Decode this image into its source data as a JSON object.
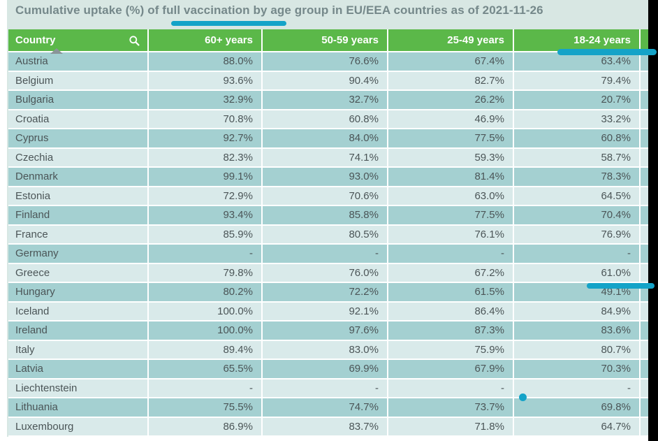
{
  "title": "Cumulative uptake (%) of full vaccination by age group in EU/EEA countries as of 2021-11-26",
  "table": {
    "columns": [
      {
        "label": "Country"
      },
      {
        "label": "60+ years"
      },
      {
        "label": "50-59 years"
      },
      {
        "label": "25-49 years"
      },
      {
        "label": "18-24 years"
      }
    ],
    "rows": [
      {
        "country": "Austria",
        "values": [
          "88.0%",
          "76.6%",
          "67.4%",
          "63.4%"
        ]
      },
      {
        "country": "Belgium",
        "values": [
          "93.6%",
          "90.4%",
          "82.7%",
          "79.4%"
        ]
      },
      {
        "country": "Bulgaria",
        "values": [
          "32.9%",
          "32.7%",
          "26.2%",
          "20.7%"
        ]
      },
      {
        "country": "Croatia",
        "values": [
          "70.8%",
          "60.8%",
          "46.9%",
          "33.2%"
        ]
      },
      {
        "country": "Cyprus",
        "values": [
          "92.7%",
          "84.0%",
          "77.5%",
          "60.8%"
        ]
      },
      {
        "country": "Czechia",
        "values": [
          "82.3%",
          "74.1%",
          "59.3%",
          "58.7%"
        ]
      },
      {
        "country": "Denmark",
        "values": [
          "99.1%",
          "93.0%",
          "81.4%",
          "78.3%"
        ]
      },
      {
        "country": "Estonia",
        "values": [
          "72.9%",
          "70.6%",
          "63.0%",
          "64.5%"
        ]
      },
      {
        "country": "Finland",
        "values": [
          "93.4%",
          "85.8%",
          "77.5%",
          "70.4%"
        ]
      },
      {
        "country": "France",
        "values": [
          "85.9%",
          "80.5%",
          "76.1%",
          "76.9%"
        ]
      },
      {
        "country": "Germany",
        "values": [
          "-",
          "-",
          "-",
          "-"
        ]
      },
      {
        "country": "Greece",
        "values": [
          "79.8%",
          "76.0%",
          "67.2%",
          "61.0%"
        ]
      },
      {
        "country": "Hungary",
        "values": [
          "80.2%",
          "72.2%",
          "61.5%",
          "49.1%"
        ]
      },
      {
        "country": "Iceland",
        "values": [
          "100.0%",
          "92.1%",
          "86.4%",
          "84.9%"
        ]
      },
      {
        "country": "Ireland",
        "values": [
          "100.0%",
          "97.6%",
          "87.3%",
          "83.6%"
        ]
      },
      {
        "country": "Italy",
        "values": [
          "89.4%",
          "83.0%",
          "75.9%",
          "80.7%"
        ]
      },
      {
        "country": "Latvia",
        "values": [
          "65.5%",
          "69.9%",
          "67.9%",
          "70.3%"
        ]
      },
      {
        "country": "Liechtenstein",
        "values": [
          "-",
          "-",
          "-",
          "-"
        ]
      },
      {
        "country": "Lithuania",
        "values": [
          "75.5%",
          "74.7%",
          "73.7%",
          "69.8%"
        ]
      },
      {
        "country": "Luxembourg",
        "values": [
          "86.9%",
          "83.7%",
          "71.8%",
          "64.7%"
        ]
      }
    ]
  },
  "icons": {
    "search": "search-icon",
    "sort": "sort-ascending-icon"
  },
  "colors": {
    "panel_bg": "#d8e7e3",
    "header_green": "#5bb849",
    "header_text": "#ffffff",
    "row_dark": "#a4d0d1",
    "row_light": "#d9eaea",
    "cell_text": "#4b5557",
    "title_text": "#75888a",
    "sort_arrow": "#8a9598",
    "annotation_blue": "#14a3c8",
    "edge_black": "#000000"
  }
}
